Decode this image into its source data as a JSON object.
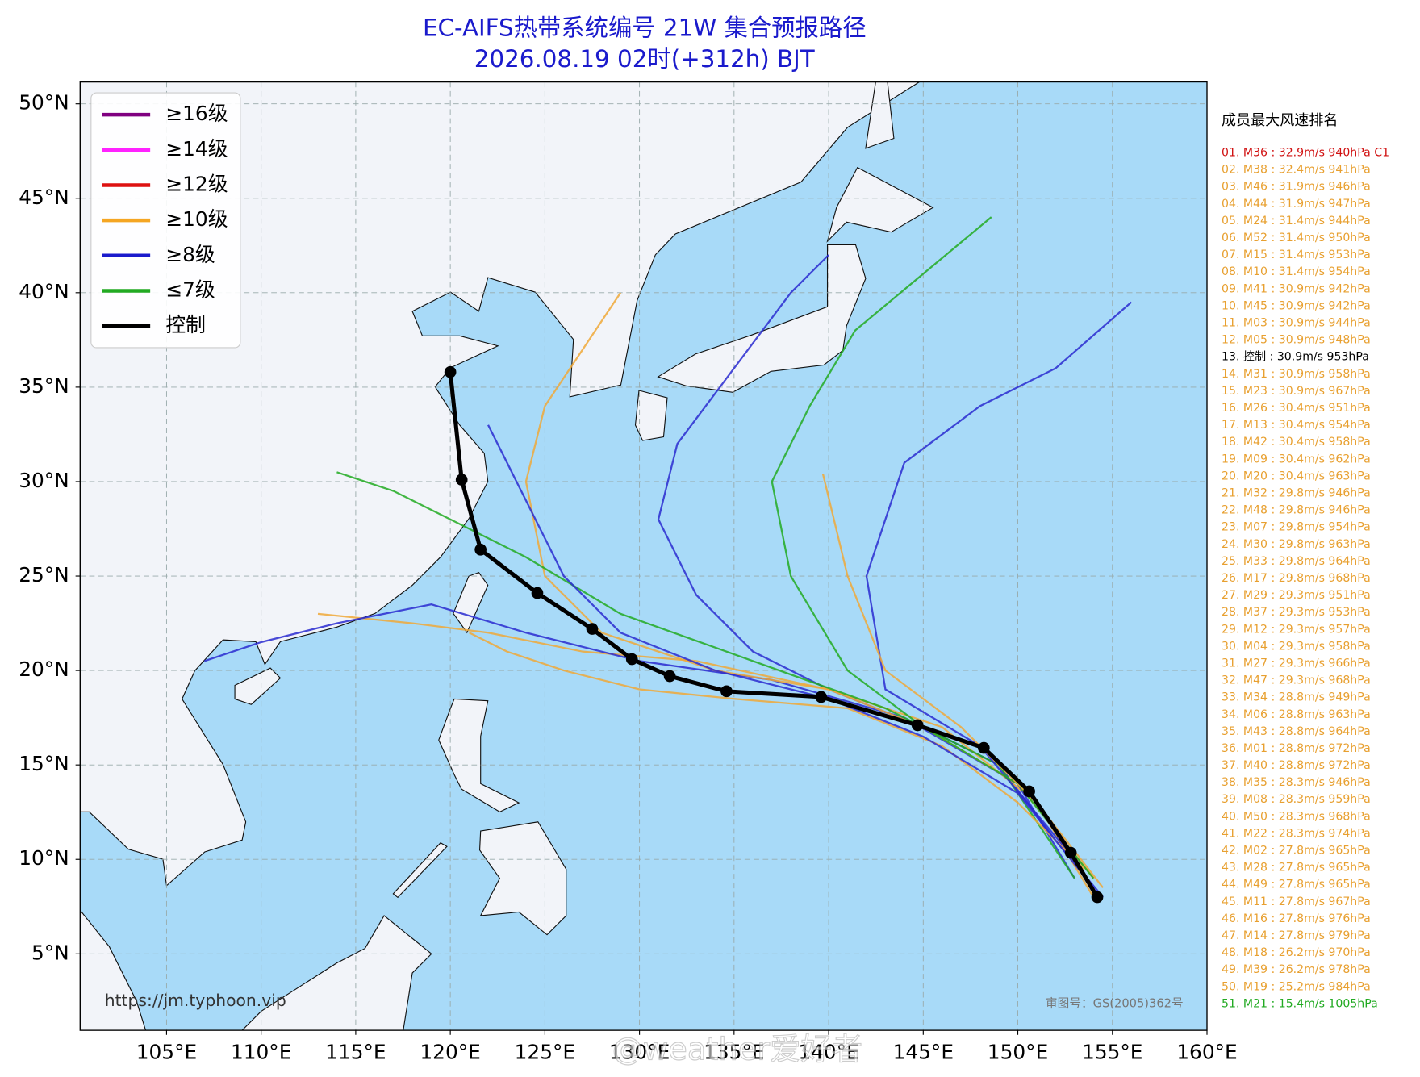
{
  "chart_data": {
    "type": "map",
    "title": "EC-AIFS热带系统编号 21W 集合预报路径",
    "subtitle": "2026.08.19 02时(+312h) BJT",
    "xlim": [
      100.43,
      160
    ],
    "ylim": [
      0.95,
      51.16
    ],
    "xticks": [
      {
        "value": 105,
        "label": "105°E"
      },
      {
        "value": 110,
        "label": "110°E"
      },
      {
        "value": 115,
        "label": "115°E"
      },
      {
        "value": 120,
        "label": "120°E"
      },
      {
        "value": 125,
        "label": "125°E"
      },
      {
        "value": 130,
        "label": "130°E"
      },
      {
        "value": 135,
        "label": "135°E"
      },
      {
        "value": 140,
        "label": "140°E"
      },
      {
        "value": 145,
        "label": "145°E"
      },
      {
        "value": 150,
        "label": "150°E"
      },
      {
        "value": 155,
        "label": "155°E"
      },
      {
        "value": 160,
        "label": "160°E"
      }
    ],
    "yticks": [
      {
        "value": 5,
        "label": "5°N"
      },
      {
        "value": 10,
        "label": "10°N"
      },
      {
        "value": 15,
        "label": "15°N"
      },
      {
        "value": 20,
        "label": "20°N"
      },
      {
        "value": 25,
        "label": "25°N"
      },
      {
        "value": 30,
        "label": "30°N"
      },
      {
        "value": 35,
        "label": "35°N"
      },
      {
        "value": 40,
        "label": "40°N"
      },
      {
        "value": 45,
        "label": "45°N"
      },
      {
        "value": 50,
        "label": "50°N"
      }
    ],
    "grid": true,
    "legend": {
      "position": "upper left",
      "items": [
        {
          "label": "≥16级",
          "color": "#800080"
        },
        {
          "label": "≥14级",
          "color": "#ff22ff"
        },
        {
          "label": "≥12级",
          "color": "#dd1111"
        },
        {
          "label": "≥10级",
          "color": "#f5a623"
        },
        {
          "label": "≥8级",
          "color": "#1a1acc"
        },
        {
          "label": "≤7级",
          "color": "#22aa22"
        },
        {
          "label": "控制",
          "color": "#000000"
        }
      ]
    },
    "tracks": [
      {
        "color": "#2a2ad0",
        "lon": [
          154.5,
          152,
          149,
          145,
          140,
          136,
          133,
          131,
          132,
          135,
          138,
          140
        ],
        "lat": [
          8,
          11,
          15,
          17,
          19,
          21,
          24,
          28,
          32,
          36,
          40,
          42
        ]
      },
      {
        "color": "#f0a838",
        "lon": [
          154,
          151,
          146,
          140,
          133,
          127,
          122,
          118,
          113
        ],
        "lat": [
          8,
          13,
          17,
          19,
          20.5,
          21,
          22,
          22.5,
          23
        ]
      },
      {
        "color": "#2a2ad0",
        "lon": [
          153,
          150,
          144,
          137,
          130,
          124,
          119,
          114,
          110,
          107
        ],
        "lat": [
          9,
          14,
          17.5,
          19.5,
          20.5,
          22,
          23.5,
          22.5,
          21.5,
          20.5
        ]
      },
      {
        "color": "#f0a838",
        "lon": [
          154,
          150,
          145,
          140,
          134,
          128,
          125,
          124,
          125,
          127,
          129
        ],
        "lat": [
          9,
          14,
          17,
          19,
          20,
          22,
          25,
          30,
          34,
          37,
          40
        ]
      },
      {
        "color": "#22aa22",
        "lon": [
          153,
          149,
          143,
          136,
          129,
          124,
          120,
          117,
          114
        ],
        "lat": [
          9,
          15,
          18,
          20.5,
          23,
          26,
          28,
          29.5,
          30.5
        ]
      },
      {
        "color": "#2a2ad0",
        "lon": [
          153,
          148,
          143,
          142,
          144,
          148,
          152,
          156
        ],
        "lat": [
          10,
          16,
          19,
          25,
          31,
          34,
          36,
          39.5
        ]
      },
      {
        "color": "#22aa22",
        "lon": [
          154,
          150,
          145,
          141,
          138,
          137,
          139,
          141.4,
          145,
          148.6
        ],
        "lat": [
          9,
          14,
          17,
          20,
          25,
          30,
          34,
          38,
          41,
          44
        ]
      },
      {
        "color": "#f0a838",
        "lon": [
          154.5,
          151,
          147,
          143,
          141,
          139.7
        ],
        "lat": [
          8.5,
          13,
          17,
          20,
          25,
          30.4
        ]
      },
      {
        "color": "#f0a838",
        "lon": [
          153.5,
          150,
          146,
          141,
          135,
          130,
          126,
          123,
          121
        ],
        "lat": [
          9.5,
          13,
          16,
          18,
          18.5,
          19,
          20,
          21,
          22
        ]
      },
      {
        "color": "#2a2ad0",
        "lon": [
          154,
          150,
          145,
          140,
          134,
          129,
          126,
          124,
          122
        ],
        "lat": [
          8.5,
          13.5,
          16.5,
          18.5,
          20,
          22,
          25,
          29,
          33
        ]
      }
    ],
    "control": {
      "color": "#000000",
      "lon": [
        154.2,
        152.8,
        150.6,
        148.2,
        144.7,
        139.6,
        134.6,
        131.6,
        129.6,
        127.5,
        124.6,
        121.6,
        120.6,
        120.0
      ],
      "lat": [
        8.0,
        10.35,
        13.6,
        15.9,
        17.1,
        18.6,
        18.9,
        19.7,
        20.6,
        22.2,
        24.1,
        26.4,
        30.1,
        35.8
      ]
    }
  },
  "ranking": {
    "title": "成员最大风速排名",
    "entries": [
      {
        "text": "01. M36 : 32.9m/s 940hPa C1",
        "color": "#d01010"
      },
      {
        "text": "02. M38 : 32.4m/s 941hPa",
        "color": "#e8a030"
      },
      {
        "text": "03. M46 : 31.9m/s 946hPa",
        "color": "#e8a030"
      },
      {
        "text": "04. M44 : 31.9m/s 947hPa",
        "color": "#e8a030"
      },
      {
        "text": "05. M24 : 31.4m/s 944hPa",
        "color": "#e8a030"
      },
      {
        "text": "06. M52 : 31.4m/s 950hPa",
        "color": "#e8a030"
      },
      {
        "text": "07. M15 : 31.4m/s 953hPa",
        "color": "#e8a030"
      },
      {
        "text": "08. M10 : 31.4m/s 954hPa",
        "color": "#e8a030"
      },
      {
        "text": "09. M41 : 30.9m/s 942hPa",
        "color": "#e8a030"
      },
      {
        "text": "10. M45 : 30.9m/s 942hPa",
        "color": "#e8a030"
      },
      {
        "text": "11. M03 : 30.9m/s 944hPa",
        "color": "#e8a030"
      },
      {
        "text": "12. M05 : 30.9m/s 948hPa",
        "color": "#e8a030"
      },
      {
        "text": "13. 控制 : 30.9m/s 953hPa",
        "color": "#000000"
      },
      {
        "text": "14. M31 : 30.9m/s 958hPa",
        "color": "#e8a030"
      },
      {
        "text": "15. M23 : 30.9m/s 967hPa",
        "color": "#e8a030"
      },
      {
        "text": "16. M26 : 30.4m/s 951hPa",
        "color": "#e8a030"
      },
      {
        "text": "17. M13 : 30.4m/s 954hPa",
        "color": "#e8a030"
      },
      {
        "text": "18. M42 : 30.4m/s 958hPa",
        "color": "#e8a030"
      },
      {
        "text": "19. M09 : 30.4m/s 962hPa",
        "color": "#e8a030"
      },
      {
        "text": "20. M20 : 30.4m/s 963hPa",
        "color": "#e8a030"
      },
      {
        "text": "21. M32 : 29.8m/s 946hPa",
        "color": "#e8a030"
      },
      {
        "text": "22. M48 : 29.8m/s 946hPa",
        "color": "#e8a030"
      },
      {
        "text": "23. M07 : 29.8m/s 954hPa",
        "color": "#e8a030"
      },
      {
        "text": "24. M30 : 29.8m/s 963hPa",
        "color": "#e8a030"
      },
      {
        "text": "25. M33 : 29.8m/s 964hPa",
        "color": "#e8a030"
      },
      {
        "text": "26. M17 : 29.8m/s 968hPa",
        "color": "#e8a030"
      },
      {
        "text": "27. M29 : 29.3m/s 951hPa",
        "color": "#e8a030"
      },
      {
        "text": "28. M37 : 29.3m/s 953hPa",
        "color": "#e8a030"
      },
      {
        "text": "29. M12 : 29.3m/s 957hPa",
        "color": "#e8a030"
      },
      {
        "text": "30. M04 : 29.3m/s 958hPa",
        "color": "#e8a030"
      },
      {
        "text": "31. M27 : 29.3m/s 966hPa",
        "color": "#e8a030"
      },
      {
        "text": "32. M47 : 29.3m/s 968hPa",
        "color": "#e8a030"
      },
      {
        "text": "33. M34 : 28.8m/s 949hPa",
        "color": "#e8a030"
      },
      {
        "text": "34. M06 : 28.8m/s 963hPa",
        "color": "#e8a030"
      },
      {
        "text": "35. M43 : 28.8m/s 964hPa",
        "color": "#e8a030"
      },
      {
        "text": "36. M01 : 28.8m/s 972hPa",
        "color": "#e8a030"
      },
      {
        "text": "37. M40 : 28.8m/s 972hPa",
        "color": "#e8a030"
      },
      {
        "text": "38. M35 : 28.3m/s 946hPa",
        "color": "#e8a030"
      },
      {
        "text": "39. M08 : 28.3m/s 959hPa",
        "color": "#e8a030"
      },
      {
        "text": "40. M50 : 28.3m/s 968hPa",
        "color": "#e8a030"
      },
      {
        "text": "41. M22 : 28.3m/s 974hPa",
        "color": "#e8a030"
      },
      {
        "text": "42. M02 : 27.8m/s 965hPa",
        "color": "#e8a030"
      },
      {
        "text": "43. M28 : 27.8m/s 965hPa",
        "color": "#e8a030"
      },
      {
        "text": "44. M49 : 27.8m/s 965hPa",
        "color": "#e8a030"
      },
      {
        "text": "45. M11 : 27.8m/s 967hPa",
        "color": "#e8a030"
      },
      {
        "text": "46. M16 : 27.8m/s 976hPa",
        "color": "#e8a030"
      },
      {
        "text": "47. M14 : 27.8m/s 979hPa",
        "color": "#e8a030"
      },
      {
        "text": "48. M18 : 26.2m/s 970hPa",
        "color": "#e8a030"
      },
      {
        "text": "49. M39 : 26.2m/s 978hPa",
        "color": "#e8a030"
      },
      {
        "text": "50. M19 : 25.2m/s 984hPa",
        "color": "#e8a030"
      },
      {
        "text": "51. M21 : 15.4m/s 1005hPa",
        "color": "#22aa22"
      }
    ]
  },
  "source": "https://jm.typhoon.vip",
  "approval": "审图号：GS(2005)362号",
  "watermark": "@weather爱好者"
}
